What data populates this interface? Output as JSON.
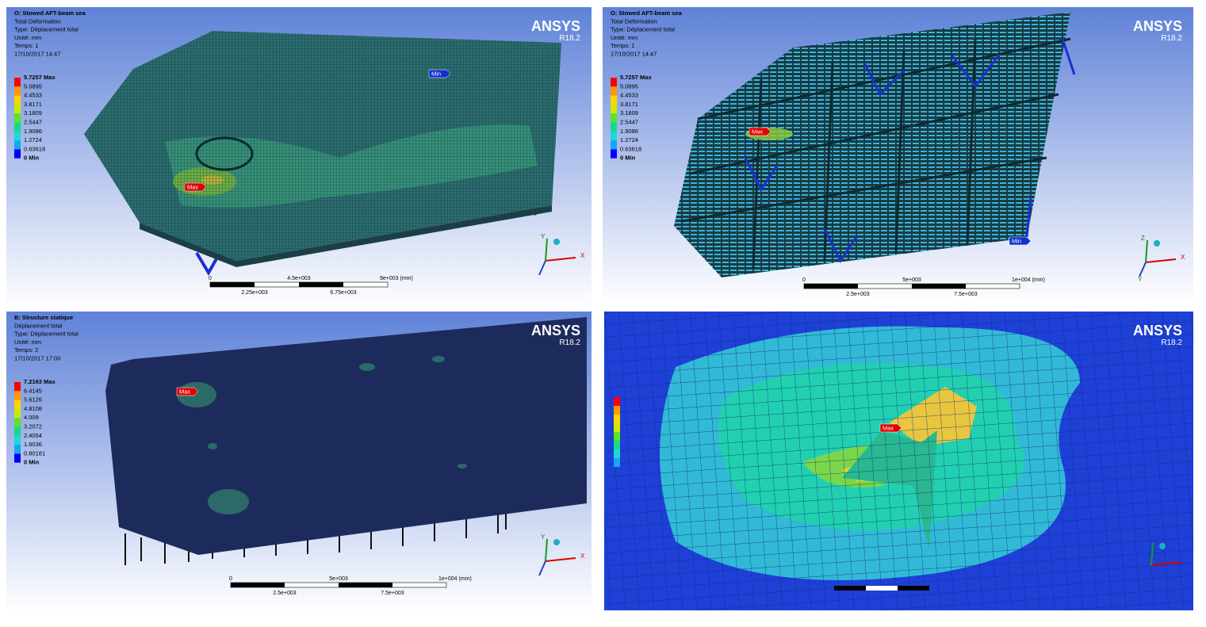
{
  "panels": [
    {
      "header": [
        "O: Stowed AFT-beam sea",
        "Total Deformation",
        "Type: Déplacement total",
        "Unité: mm",
        "Temps: 1",
        "17/10/2017 14:47"
      ],
      "legend": [
        "5.7257 Max",
        "5.0895",
        "4.4533",
        "3.8171",
        "3.1809",
        "2.5447",
        "1.9086",
        "1.2724",
        "0.63618",
        "0 Min"
      ],
      "markers": [
        "Max",
        "Min"
      ],
      "scale": {
        "top": [
          "0",
          "4.5e+003",
          "9e+003 (mm)"
        ],
        "bottom": [
          "2.25e+003",
          "6.75e+003"
        ]
      },
      "axes": [
        "Y",
        "X"
      ],
      "logo": "ANSYS",
      "version": "R18.2"
    },
    {
      "header": [
        "O: Stowed AFT-beam sea",
        "Total Deformation",
        "Type: Déplacement total",
        "Unité: mm",
        "Temps: 1",
        "17/10/2017 14:47"
      ],
      "legend": [
        "5.7257 Max",
        "5.0895",
        "4.4533",
        "3.8171",
        "3.1809",
        "2.5447",
        "1.9086",
        "1.2724",
        "0.63618",
        "0 Min"
      ],
      "markers": [
        "Max",
        "Min"
      ],
      "scale": {
        "top": [
          "0",
          "5e+003",
          "1e+004 (mm)"
        ],
        "bottom": [
          "2.5e+003",
          "7.5e+003"
        ]
      },
      "axes": [
        "Z",
        "X",
        "Y"
      ],
      "logo": "ANSYS",
      "version": "R18.2"
    },
    {
      "header": [
        "B: Structure statique",
        "Déplacement total",
        "Type: Déplacement total",
        "Unité: mm",
        "Temps: 2",
        "17/10/2017 17:00"
      ],
      "legend": [
        "7.2163 Max",
        "6.4145",
        "5.6126",
        "4.8108",
        "4.009",
        "3.2072",
        "2.4054",
        "1.6036",
        "0.80181",
        "0 Min"
      ],
      "markers": [
        "Max"
      ],
      "scale": {
        "top": [
          "0",
          "5e+003",
          "1e+004 (mm)"
        ],
        "bottom": [
          "2.5e+003",
          "7.5e+003"
        ]
      },
      "axes": [
        "Y",
        "X"
      ],
      "logo": "ANSYS",
      "version": "R18.2"
    },
    {
      "markers": [
        "Max"
      ],
      "logo": "ANSYS",
      "version": "R18.2"
    }
  ]
}
